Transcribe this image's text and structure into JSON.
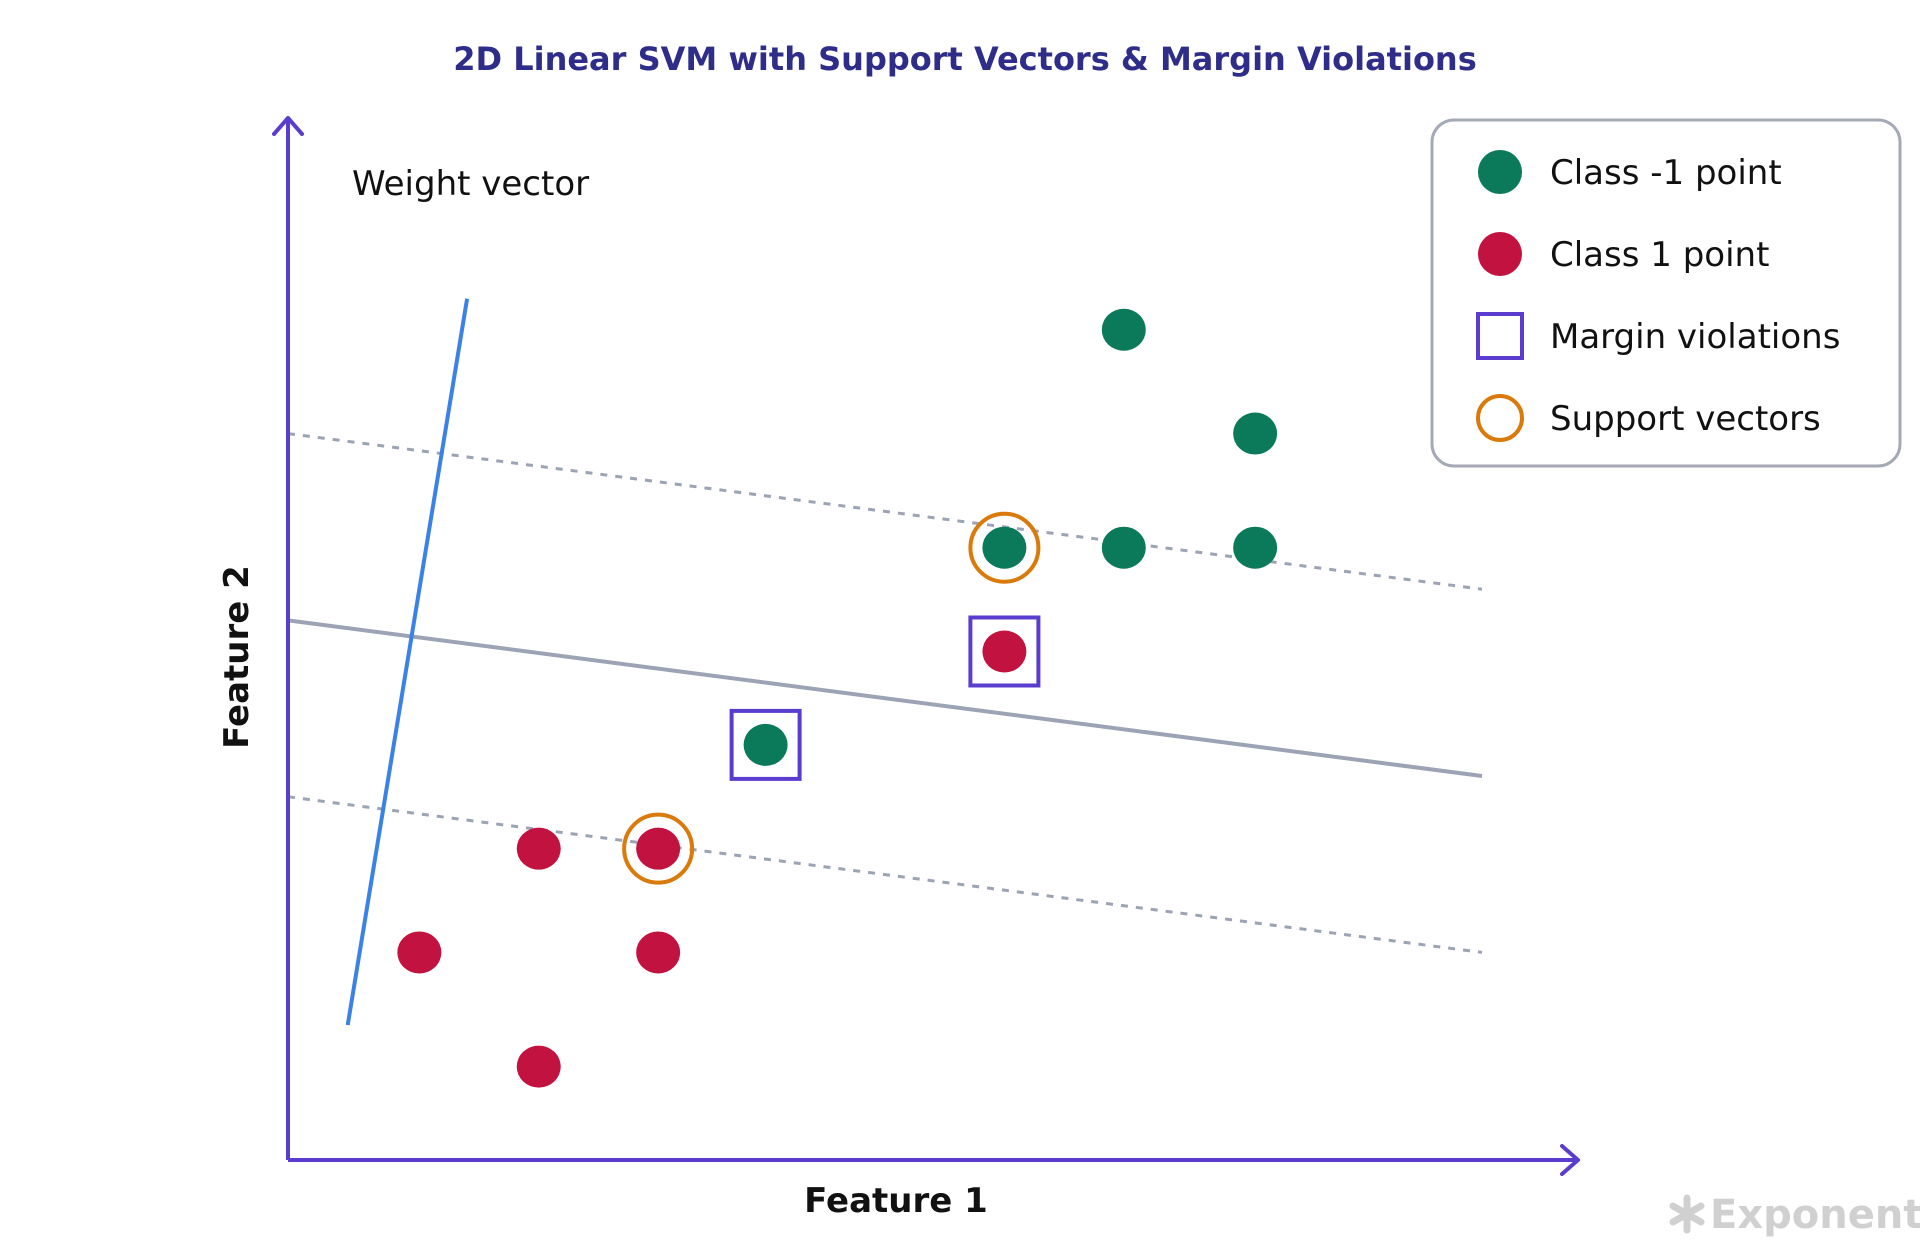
{
  "chart_data": {
    "type": "scatter",
    "title": "2D Linear SVM with Support Vectors & Margin Violations",
    "xlabel": "Feature 1",
    "ylabel": "Feature 2",
    "xlim": [
      0,
      10
    ],
    "ylim": [
      0,
      9
    ],
    "grid": false,
    "legend_position": "top-right",
    "series": [
      {
        "name": "Class -1 point",
        "color": "#0b7a5a",
        "points": [
          [
            7.0,
            8.0
          ],
          [
            8.1,
            7.0
          ],
          [
            6.0,
            5.9
          ],
          [
            7.0,
            5.9
          ],
          [
            8.1,
            5.9
          ],
          [
            4.0,
            4.0
          ]
        ]
      },
      {
        "name": "Class 1 point",
        "color": "#c2123f",
        "points": [
          [
            6.0,
            4.9
          ],
          [
            2.1,
            3.0
          ],
          [
            3.1,
            3.0
          ],
          [
            1.1,
            2.0
          ],
          [
            3.1,
            2.0
          ],
          [
            2.1,
            0.9
          ]
        ]
      }
    ],
    "margin_violations": {
      "name": "Margin violations",
      "color": "#5a3ccf",
      "points": [
        [
          6.0,
          4.9
        ],
        [
          4.0,
          4.0
        ]
      ]
    },
    "support_vectors": {
      "name": "Support vectors",
      "color": "#d97a0a",
      "points": [
        [
          6.0,
          5.9
        ],
        [
          3.1,
          3.0
        ]
      ]
    },
    "lines": {
      "decision_boundary": {
        "points": [
          [
            0,
            5.2
          ],
          [
            10,
            3.7
          ]
        ],
        "color": "#9ba3b4",
        "style": "solid"
      },
      "upper_margin": {
        "points": [
          [
            0,
            7.0
          ],
          [
            10,
            5.5
          ]
        ],
        "color": "#9ba3b4",
        "style": "dashed"
      },
      "lower_margin": {
        "points": [
          [
            0,
            3.5
          ],
          [
            10,
            2.0
          ]
        ],
        "color": "#9ba3b4",
        "style": "dashed"
      },
      "weight_vector": {
        "points": [
          [
            0.5,
            1.3
          ],
          [
            1.5,
            8.3
          ]
        ],
        "color": "#3b82e8",
        "label": "Weight vector"
      }
    },
    "title_color": "#2e2e8a",
    "axis_color": "#5a3ccf"
  },
  "watermark": {
    "icon": "asterisk-icon",
    "text": "Exponent"
  }
}
